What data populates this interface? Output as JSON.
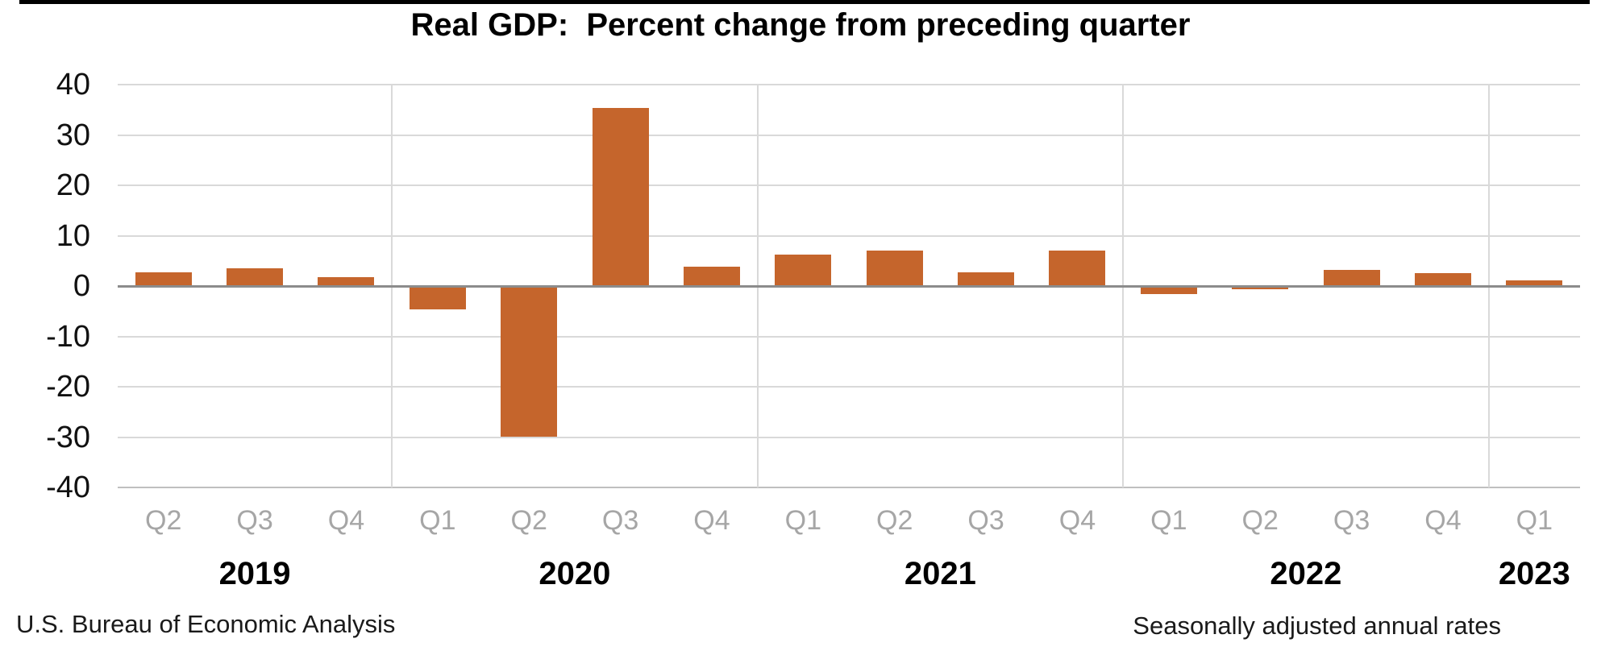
{
  "page": {
    "title_text": "Real GDP:  Percent change from preceding quarter"
  },
  "footer": {
    "left": "U.S. Bureau of Economic Analysis",
    "right": "Seasonally adjusted annual rates"
  },
  "colors": {
    "background": "#FFFFFF",
    "top_border": "#000000",
    "bar": "#C5652C",
    "gridline": "#D9D9D9",
    "axis_bottom_line": "#BFBFBF",
    "zero_line": "#8C8C8C",
    "quarter_label": "#A6A6A6",
    "year_label": "#000000",
    "title": "#000000"
  },
  "chart_data": {
    "type": "bar",
    "title": "Real GDP:  Percent change from preceding quarter",
    "categories": [
      "Q2",
      "Q3",
      "Q4",
      "Q1",
      "Q2",
      "Q3",
      "Q4",
      "Q1",
      "Q2",
      "Q3",
      "Q4",
      "Q1",
      "Q2",
      "Q3",
      "Q4",
      "Q1"
    ],
    "values": [
      2.7,
      3.6,
      1.8,
      -4.6,
      -29.9,
      35.3,
      3.9,
      6.3,
      7.0,
      2.7,
      7.0,
      -1.6,
      -0.6,
      3.2,
      2.6,
      1.1
    ],
    "year_groups": [
      {
        "label": "2019",
        "count": 3
      },
      {
        "label": "2020",
        "count": 4
      },
      {
        "label": "2021",
        "count": 4
      },
      {
        "label": "2022",
        "count": 4
      },
      {
        "label": "2023",
        "count": 1
      }
    ],
    "ylim": [
      -40,
      40
    ],
    "ytick_step": 10,
    "ytick_labels": [
      "40",
      "30",
      "20",
      "10",
      "0",
      "-10",
      "-20",
      "-30",
      "-40"
    ],
    "legend_position": "none",
    "grid": "horizontal value gridlines plus vertical year-separator gridlines",
    "bar_color": "#C5652C",
    "source_note": "U.S. Bureau of Economic Analysis",
    "adjustment_note": "Seasonally adjusted annual rates"
  }
}
